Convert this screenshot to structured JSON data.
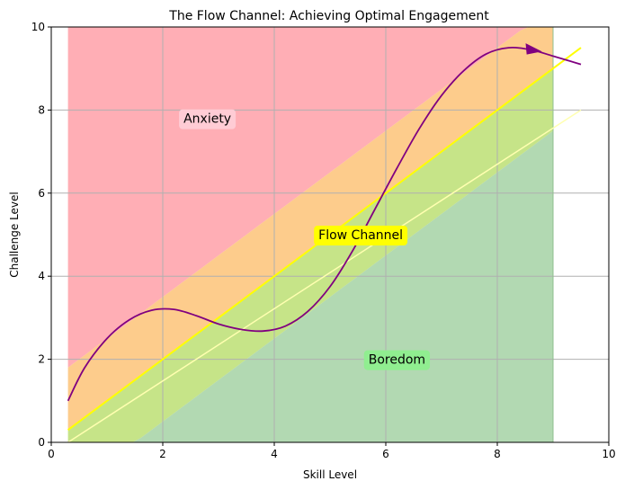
{
  "chart_data": {
    "type": "area",
    "title": "The Flow Channel: Achieving Optimal Engagement",
    "xlabel": "Skill Level",
    "ylabel": "Challenge Level",
    "xlim": [
      0,
      10
    ],
    "ylim": [
      0,
      10
    ],
    "xticks": [
      "0",
      "2",
      "4",
      "6",
      "8",
      "10"
    ],
    "yticks": [
      "0",
      "2",
      "4",
      "6",
      "8",
      "10"
    ],
    "grid": true,
    "regions": [
      {
        "label": "Anxiety",
        "color": "#ff9aa2",
        "opacity": 0.8,
        "x_range": [
          0.3,
          9.0
        ],
        "lower": "y = x + 1.5",
        "upper": "y = 10"
      },
      {
        "label": "",
        "color": "#fdbf6f",
        "opacity": 0.8,
        "x_range": [
          0.3,
          9.0
        ],
        "lower": "y = x",
        "upper": "y = x + 1.5"
      },
      {
        "label": "",
        "color": "#b8dd6a",
        "opacity": 0.8,
        "x_range": [
          0.3,
          9.0
        ],
        "lower": "y = x - 1.5",
        "upper": "y = x"
      },
      {
        "label": "Boredom",
        "color": "#98cc98",
        "opacity": 0.75,
        "x_range": [
          0.3,
          9.0
        ],
        "lower": "y = 0",
        "upper": "y = x - 1.5"
      }
    ],
    "flow_line": {
      "x": [
        0.3,
        9.5
      ],
      "y": [
        0.3,
        9.5
      ],
      "color": "#ffff00"
    },
    "flow_edge_line": {
      "x": [
        0.3,
        9.5
      ],
      "y": [
        -1.2,
        8.0
      ],
      "color": "#ffffb0"
    },
    "path": {
      "color": "#800080",
      "x": [
        0.3,
        0.6,
        1.0,
        1.4,
        1.8,
        2.2,
        2.6,
        3.0,
        3.4,
        3.8,
        4.2,
        4.6,
        5.0,
        5.4,
        5.8,
        6.2,
        6.6,
        7.0,
        7.4,
        7.8,
        8.2,
        8.6,
        9.0,
        9.5
      ],
      "y": [
        1.0,
        1.8,
        2.5,
        2.95,
        3.18,
        3.2,
        3.05,
        2.85,
        2.72,
        2.68,
        2.8,
        3.15,
        3.75,
        4.6,
        5.6,
        6.6,
        7.55,
        8.35,
        8.95,
        9.35,
        9.5,
        9.45,
        9.3,
        9.1
      ]
    },
    "arrow": {
      "x": 8.55,
      "y": 9.48,
      "color": "#800080"
    },
    "annotations": [
      {
        "text": "Anxiety",
        "x": 2.8,
        "y": 7.8,
        "bg": "#ffccd5"
      },
      {
        "text": "Flow Channel",
        "x": 5.55,
        "y": 5.0,
        "bg": "#ffff00"
      },
      {
        "text": "Boredom",
        "x": 6.2,
        "y": 2.0,
        "bg": "#90ee90"
      }
    ]
  }
}
